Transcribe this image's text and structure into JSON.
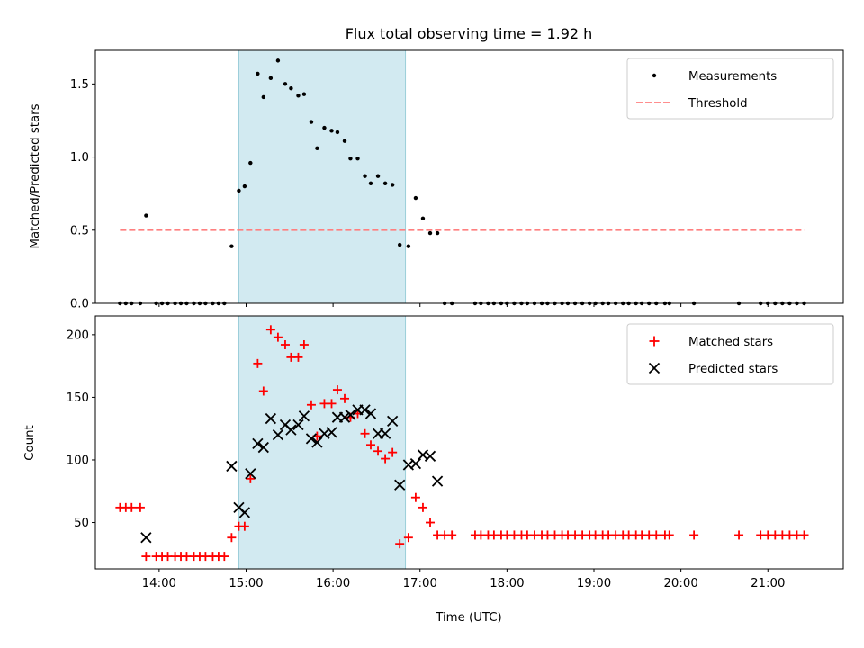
{
  "figure": {
    "title": "Flux total observing time = 1.92 h"
  },
  "colors": {
    "shade": "#add8e6",
    "threshold": "#ff7f7f",
    "matched": "#ff0000",
    "predicted": "#000000",
    "measurement": "#000000"
  },
  "chart_data": [
    {
      "type": "scatter",
      "panel": "top",
      "ylabel": "Matched/Predicted stars",
      "xlim": [
        "13:16",
        "21:52"
      ],
      "ylim": [
        0,
        1.73
      ],
      "yticks": [
        0.0,
        0.5,
        1.0,
        1.5
      ],
      "ytick_labels": [
        "0.0",
        "0.5",
        "1.0",
        "1.5"
      ],
      "shaded_region": [
        "14:55",
        "16:50"
      ],
      "legend_position": "upper right",
      "series": [
        {
          "name": "Measurements",
          "marker": "dot",
          "points": [
            [
              "13:33",
              0
            ],
            [
              "13:37",
              0
            ],
            [
              "13:41",
              0
            ],
            [
              "13:47",
              0
            ],
            [
              "13:51",
              0.6
            ],
            [
              "13:58",
              0
            ],
            [
              "14:02",
              0
            ],
            [
              "14:06",
              0
            ],
            [
              "14:11",
              0
            ],
            [
              "14:15",
              0
            ],
            [
              "14:19",
              0
            ],
            [
              "14:24",
              0
            ],
            [
              "14:28",
              0
            ],
            [
              "14:32",
              0
            ],
            [
              "14:37",
              0
            ],
            [
              "14:41",
              0
            ],
            [
              "14:45",
              0
            ],
            [
              "14:50",
              0.39
            ],
            [
              "14:55",
              0.77
            ],
            [
              "14:59",
              0.8
            ],
            [
              "15:03",
              0.96
            ],
            [
              "15:08",
              1.57
            ],
            [
              "15:12",
              1.41
            ],
            [
              "15:17",
              1.54
            ],
            [
              "15:22",
              1.66
            ],
            [
              "15:27",
              1.5
            ],
            [
              "15:31",
              1.47
            ],
            [
              "15:36",
              1.42
            ],
            [
              "15:40",
              1.43
            ],
            [
              "15:45",
              1.24
            ],
            [
              "15:49",
              1.06
            ],
            [
              "15:54",
              1.2
            ],
            [
              "15:59",
              1.18
            ],
            [
              "16:03",
              1.17
            ],
            [
              "16:08",
              1.11
            ],
            [
              "16:12",
              0.99
            ],
            [
              "16:17",
              0.99
            ],
            [
              "16:22",
              0.87
            ],
            [
              "16:26",
              0.82
            ],
            [
              "16:31",
              0.87
            ],
            [
              "16:36",
              0.82
            ],
            [
              "16:41",
              0.81
            ],
            [
              "16:46",
              0.4
            ],
            [
              "16:52",
              0.39
            ],
            [
              "16:57",
              0.72
            ],
            [
              "17:02",
              0.58
            ],
            [
              "17:07",
              0.48
            ],
            [
              "17:12",
              0.48
            ],
            [
              "17:17",
              0
            ],
            [
              "17:22",
              0
            ],
            [
              "17:38",
              0
            ],
            [
              "17:42",
              0
            ],
            [
              "17:47",
              0
            ],
            [
              "17:51",
              0
            ],
            [
              "17:56",
              0
            ],
            [
              "18:00",
              0
            ],
            [
              "18:05",
              0
            ],
            [
              "18:10",
              0
            ],
            [
              "18:14",
              0
            ],
            [
              "18:19",
              0
            ],
            [
              "18:24",
              0
            ],
            [
              "18:28",
              0
            ],
            [
              "18:33",
              0
            ],
            [
              "18:38",
              0
            ],
            [
              "18:42",
              0
            ],
            [
              "18:47",
              0
            ],
            [
              "18:52",
              0
            ],
            [
              "18:57",
              0
            ],
            [
              "19:01",
              0
            ],
            [
              "19:06",
              0
            ],
            [
              "19:10",
              0
            ],
            [
              "19:15",
              0
            ],
            [
              "19:20",
              0
            ],
            [
              "19:24",
              0
            ],
            [
              "19:29",
              0
            ],
            [
              "19:33",
              0
            ],
            [
              "19:38",
              0
            ],
            [
              "19:43",
              0
            ],
            [
              "19:49",
              0
            ],
            [
              "19:52",
              0
            ],
            [
              "20:09",
              0
            ],
            [
              "20:40",
              0
            ],
            [
              "20:55",
              0
            ],
            [
              "21:00",
              0
            ],
            [
              "21:05",
              0
            ],
            [
              "21:10",
              0
            ],
            [
              "21:15",
              0
            ],
            [
              "21:20",
              0
            ],
            [
              "21:25",
              0
            ]
          ]
        },
        {
          "name": "Threshold",
          "style": "dashed",
          "points": [
            [
              "13:33",
              0.5
            ],
            [
              "21:25",
              0.5
            ]
          ]
        }
      ]
    },
    {
      "type": "scatter",
      "panel": "bottom",
      "xlabel": "Time (UTC)",
      "ylabel": "Count",
      "xlim": [
        "13:16",
        "21:52"
      ],
      "ylim": [
        13,
        215
      ],
      "yticks": [
        50,
        100,
        150,
        200
      ],
      "xticks": [
        "14:00",
        "15:00",
        "16:00",
        "17:00",
        "18:00",
        "19:00",
        "20:00",
        "21:00"
      ],
      "shaded_region": [
        "14:55",
        "16:50"
      ],
      "legend_position": "upper right",
      "series": [
        {
          "name": "Matched stars",
          "marker": "plus",
          "points": [
            [
              "13:33",
              62
            ],
            [
              "13:37",
              62
            ],
            [
              "13:41",
              62
            ],
            [
              "13:47",
              62
            ],
            [
              "13:51",
              23
            ],
            [
              "13:58",
              23
            ],
            [
              "14:02",
              23
            ],
            [
              "14:06",
              23
            ],
            [
              "14:11",
              23
            ],
            [
              "14:15",
              23
            ],
            [
              "14:19",
              23
            ],
            [
              "14:24",
              23
            ],
            [
              "14:28",
              23
            ],
            [
              "14:32",
              23
            ],
            [
              "14:37",
              23
            ],
            [
              "14:41",
              23
            ],
            [
              "14:45",
              23
            ],
            [
              "14:50",
              38
            ],
            [
              "14:55",
              47
            ],
            [
              "14:59",
              47
            ],
            [
              "15:03",
              85
            ],
            [
              "15:08",
              177
            ],
            [
              "15:12",
              155
            ],
            [
              "15:17",
              204
            ],
            [
              "15:22",
              198
            ],
            [
              "15:27",
              192
            ],
            [
              "15:31",
              182
            ],
            [
              "15:36",
              182
            ],
            [
              "15:40",
              192
            ],
            [
              "15:45",
              144
            ],
            [
              "15:49",
              119
            ],
            [
              "15:54",
              145
            ],
            [
              "15:59",
              145
            ],
            [
              "16:03",
              156
            ],
            [
              "16:08",
              149
            ],
            [
              "16:12",
              134
            ],
            [
              "16:17",
              137
            ],
            [
              "16:22",
              121
            ],
            [
              "16:26",
              112
            ],
            [
              "16:31",
              107
            ],
            [
              "16:36",
              101
            ],
            [
              "16:41",
              106
            ],
            [
              "16:46",
              33
            ],
            [
              "16:52",
              38
            ],
            [
              "16:57",
              70
            ],
            [
              "17:02",
              62
            ],
            [
              "17:07",
              50
            ],
            [
              "17:12",
              40
            ],
            [
              "17:17",
              40
            ],
            [
              "17:22",
              40
            ],
            [
              "17:38",
              40
            ],
            [
              "17:42",
              40
            ],
            [
              "17:47",
              40
            ],
            [
              "17:51",
              40
            ],
            [
              "17:56",
              40
            ],
            [
              "18:00",
              40
            ],
            [
              "18:05",
              40
            ],
            [
              "18:10",
              40
            ],
            [
              "18:14",
              40
            ],
            [
              "18:19",
              40
            ],
            [
              "18:24",
              40
            ],
            [
              "18:28",
              40
            ],
            [
              "18:33",
              40
            ],
            [
              "18:38",
              40
            ],
            [
              "18:42",
              40
            ],
            [
              "18:47",
              40
            ],
            [
              "18:52",
              40
            ],
            [
              "18:57",
              40
            ],
            [
              "19:01",
              40
            ],
            [
              "19:06",
              40
            ],
            [
              "19:10",
              40
            ],
            [
              "19:15",
              40
            ],
            [
              "19:20",
              40
            ],
            [
              "19:24",
              40
            ],
            [
              "19:29",
              40
            ],
            [
              "19:33",
              40
            ],
            [
              "19:38",
              40
            ],
            [
              "19:43",
              40
            ],
            [
              "19:49",
              40
            ],
            [
              "19:52",
              40
            ],
            [
              "20:09",
              40
            ],
            [
              "20:40",
              40
            ],
            [
              "20:55",
              40
            ],
            [
              "21:00",
              40
            ],
            [
              "21:05",
              40
            ],
            [
              "21:10",
              40
            ],
            [
              "21:15",
              40
            ],
            [
              "21:20",
              40
            ],
            [
              "21:25",
              40
            ]
          ]
        },
        {
          "name": "Predicted stars",
          "marker": "x",
          "points": [
            [
              "13:51",
              38
            ],
            [
              "14:50",
              95
            ],
            [
              "14:55",
              62
            ],
            [
              "14:59",
              58
            ],
            [
              "15:03",
              89
            ],
            [
              "15:08",
              113
            ],
            [
              "15:12",
              110
            ],
            [
              "15:17",
              133
            ],
            [
              "15:22",
              120
            ],
            [
              "15:27",
              128
            ],
            [
              "15:31",
              124
            ],
            [
              "15:36",
              128
            ],
            [
              "15:40",
              135
            ],
            [
              "15:45",
              117
            ],
            [
              "15:49",
              114
            ],
            [
              "15:54",
              121
            ],
            [
              "15:59",
              122
            ],
            [
              "16:03",
              134
            ],
            [
              "16:08",
              134
            ],
            [
              "16:12",
              136
            ],
            [
              "16:17",
              140
            ],
            [
              "16:22",
              140
            ],
            [
              "16:26",
              137
            ],
            [
              "16:31",
              121
            ],
            [
              "16:36",
              121
            ],
            [
              "16:41",
              131
            ],
            [
              "16:46",
              80
            ],
            [
              "16:52",
              96
            ],
            [
              "16:57",
              97
            ],
            [
              "17:02",
              104
            ],
            [
              "17:07",
              103
            ],
            [
              "17:12",
              83
            ]
          ]
        }
      ]
    }
  ]
}
